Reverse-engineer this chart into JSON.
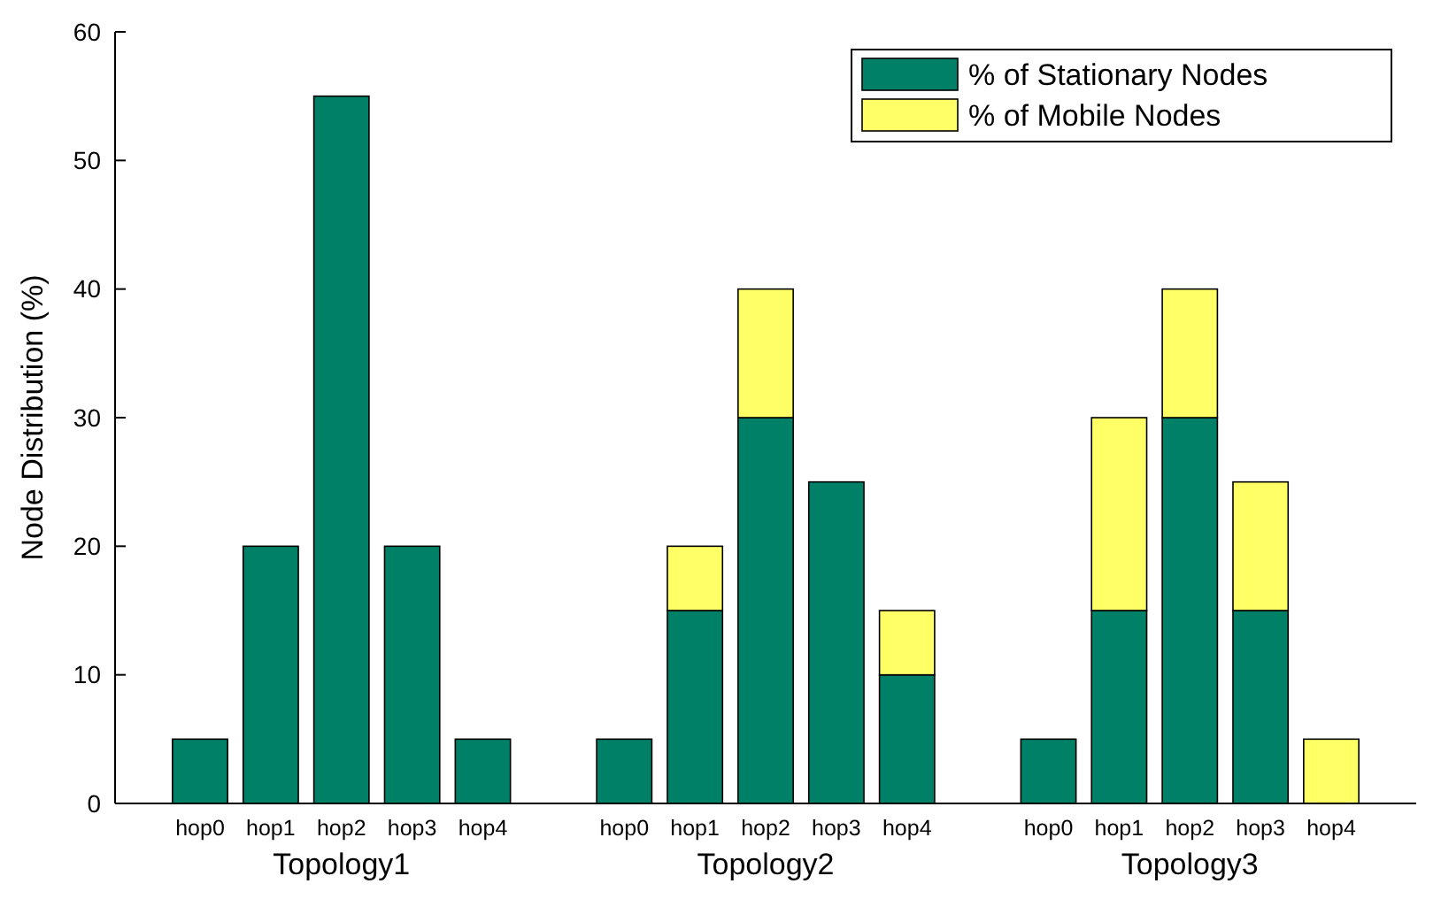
{
  "chart_data": {
    "type": "bar",
    "stacked": true,
    "ylabel": "Node Distribution (%)",
    "categories": [
      "hop0",
      "hop1",
      "hop2",
      "hop3",
      "hop4",
      null,
      "hop0",
      "hop1",
      "hop2",
      "hop3",
      "hop4",
      null,
      "hop0",
      "hop1",
      "hop2",
      "hop3",
      "hop4"
    ],
    "series": [
      {
        "name": "% of Stationary Nodes",
        "color": "#008066",
        "values": [
          5,
          20,
          55,
          20,
          5,
          null,
          5,
          15,
          30,
          25,
          10,
          null,
          5,
          15,
          30,
          15,
          0
        ]
      },
      {
        "name": "% of Mobile Nodes",
        "color": "#ffff66",
        "values": [
          0,
          0,
          0,
          0,
          0,
          null,
          0,
          5,
          10,
          0,
          5,
          null,
          0,
          15,
          10,
          10,
          5
        ]
      }
    ],
    "annotations": [
      "Topology1",
      "Topology2",
      "Topology3"
    ],
    "ylim": [
      0,
      60
    ],
    "yticks": [
      0,
      10,
      20,
      30,
      40,
      50,
      60
    ],
    "grid": false,
    "legend": "top right"
  }
}
